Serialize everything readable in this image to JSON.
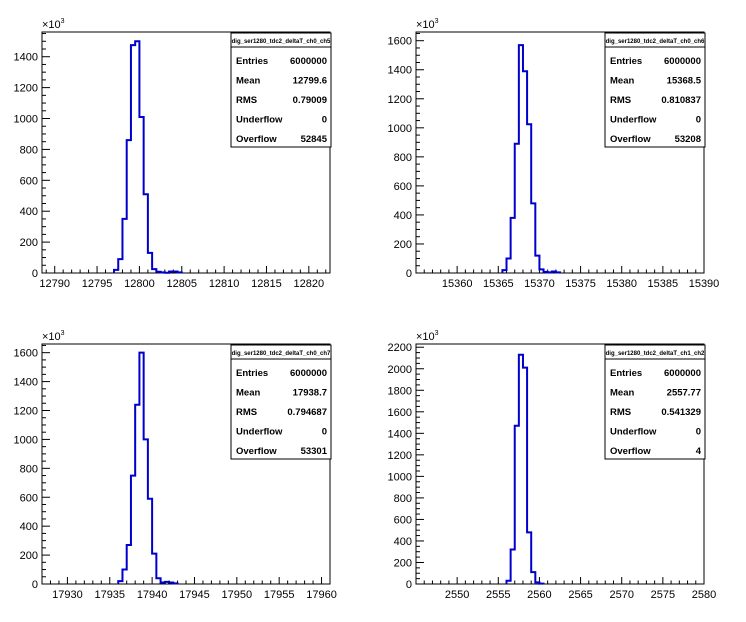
{
  "chart_data": [
    {
      "type": "histogram",
      "title": "",
      "xlabel": "",
      "ylabel": "",
      "y_exponent": "10^3",
      "y_exponent_base": "×10",
      "y_exponent_power": "3",
      "xlim": [
        12788.5,
        12822.5
      ],
      "ylim": [
        0,
        1560
      ],
      "x_ticks": [
        12790,
        12795,
        12800,
        12805,
        12810,
        12815,
        12820
      ],
      "y_ticks": [
        0,
        200,
        400,
        600,
        800,
        1000,
        1200,
        1400
      ],
      "bin_width": 0.5,
      "bins": [
        {
          "x": 12797.0,
          "y": 20
        },
        {
          "x": 12797.5,
          "y": 90
        },
        {
          "x": 12798.0,
          "y": 350
        },
        {
          "x": 12798.5,
          "y": 860
        },
        {
          "x": 12799.0,
          "y": 1475
        },
        {
          "x": 12799.5,
          "y": 1500
        },
        {
          "x": 12800.0,
          "y": 1010
        },
        {
          "x": 12800.5,
          "y": 510
        },
        {
          "x": 12801.0,
          "y": 130
        },
        {
          "x": 12801.5,
          "y": 25
        },
        {
          "x": 12802.0,
          "y": 8
        },
        {
          "x": 12802.5,
          "y": 4
        },
        {
          "x": 12803.0,
          "y": 2
        },
        {
          "x": 12803.5,
          "y": 10
        },
        {
          "x": 12804.0,
          "y": 10
        },
        {
          "x": 12804.5,
          "y": 4
        }
      ],
      "stats": {
        "name": "dig_ser1280_tdc2_deltaT_ch0_ch5",
        "rows": [
          {
            "label": "Entries",
            "value": "6000000"
          },
          {
            "label": "Mean",
            "value": "12799.6"
          },
          {
            "label": "RMS",
            "value": "0.79009"
          },
          {
            "label": "Underflow",
            "value": "0"
          },
          {
            "label": "Overflow",
            "value": "52845"
          }
        ]
      }
    },
    {
      "type": "histogram",
      "title": "",
      "xlabel": "",
      "ylabel": "",
      "y_exponent": "10^3",
      "y_exponent_base": "×10",
      "y_exponent_power": "3",
      "xlim": [
        15355,
        15390
      ],
      "ylim": [
        0,
        1660
      ],
      "x_ticks": [
        15360,
        15365,
        15370,
        15375,
        15380,
        15385,
        15390
      ],
      "y_ticks": [
        0,
        200,
        400,
        600,
        800,
        1000,
        1200,
        1400,
        1600
      ],
      "bin_width": 0.5,
      "bins": [
        {
          "x": 15365.5,
          "y": 20
        },
        {
          "x": 15366.0,
          "y": 100
        },
        {
          "x": 15366.5,
          "y": 380
        },
        {
          "x": 15367.0,
          "y": 890
        },
        {
          "x": 15367.5,
          "y": 1570
        },
        {
          "x": 15368.0,
          "y": 1390
        },
        {
          "x": 15368.5,
          "y": 1025
        },
        {
          "x": 15369.0,
          "y": 480
        },
        {
          "x": 15369.5,
          "y": 120
        },
        {
          "x": 15370.0,
          "y": 25
        },
        {
          "x": 15370.5,
          "y": 8
        },
        {
          "x": 15371.0,
          "y": 4
        },
        {
          "x": 15371.5,
          "y": 10
        },
        {
          "x": 15372.0,
          "y": 4
        }
      ],
      "stats": {
        "name": "dig_ser1280_tdc2_deltaT_ch0_ch6",
        "rows": [
          {
            "label": "Entries",
            "value": "6000000"
          },
          {
            "label": "Mean",
            "value": "15368.5"
          },
          {
            "label": "RMS",
            "value": "0.810837"
          },
          {
            "label": "Underflow",
            "value": "0"
          },
          {
            "label": "Overflow",
            "value": "53208"
          }
        ]
      }
    },
    {
      "type": "histogram",
      "title": "",
      "xlabel": "",
      "ylabel": "",
      "y_exponent": "10^3",
      "y_exponent_base": "×10",
      "y_exponent_power": "3",
      "xlim": [
        17927,
        17961
      ],
      "ylim": [
        0,
        1660
      ],
      "x_ticks": [
        17930,
        17935,
        17940,
        17945,
        17950,
        17955,
        17960
      ],
      "y_ticks": [
        0,
        200,
        400,
        600,
        800,
        1000,
        1200,
        1400,
        1600
      ],
      "bin_width": 0.5,
      "bins": [
        {
          "x": 17936.0,
          "y": 20
        },
        {
          "x": 17936.5,
          "y": 100
        },
        {
          "x": 17937.0,
          "y": 270
        },
        {
          "x": 17937.5,
          "y": 750
        },
        {
          "x": 17938.0,
          "y": 1240
        },
        {
          "x": 17938.5,
          "y": 1600
        },
        {
          "x": 17939.0,
          "y": 1000
        },
        {
          "x": 17939.5,
          "y": 590
        },
        {
          "x": 17940.0,
          "y": 210
        },
        {
          "x": 17940.5,
          "y": 40
        },
        {
          "x": 17941.0,
          "y": 10
        },
        {
          "x": 17941.5,
          "y": 15
        },
        {
          "x": 17942.0,
          "y": 10
        },
        {
          "x": 17942.5,
          "y": 4
        }
      ],
      "stats": {
        "name": "dig_ser1280_tdc2_deltaT_ch0_ch7",
        "rows": [
          {
            "label": "Entries",
            "value": "6000000"
          },
          {
            "label": "Mean",
            "value": "17938.7"
          },
          {
            "label": "RMS",
            "value": "0.794687"
          },
          {
            "label": "Underflow",
            "value": "0"
          },
          {
            "label": "Overflow",
            "value": "53301"
          }
        ]
      }
    },
    {
      "type": "histogram",
      "title": "",
      "xlabel": "",
      "ylabel": "",
      "y_exponent": "10^3",
      "y_exponent_base": "×10",
      "y_exponent_power": "3",
      "xlim": [
        2545,
        2580
      ],
      "ylim": [
        0,
        2230
      ],
      "x_ticks": [
        2550,
        2555,
        2560,
        2565,
        2570,
        2575,
        2580
      ],
      "y_ticks": [
        0,
        200,
        400,
        600,
        800,
        1000,
        1200,
        1400,
        1600,
        1800,
        2000,
        2200
      ],
      "bin_width": 0.5,
      "bins": [
        {
          "x": 2556.0,
          "y": 30
        },
        {
          "x": 2556.5,
          "y": 320
        },
        {
          "x": 2557.0,
          "y": 1470
        },
        {
          "x": 2557.5,
          "y": 2130
        },
        {
          "x": 2558.0,
          "y": 2010
        },
        {
          "x": 2558.5,
          "y": 480
        },
        {
          "x": 2559.0,
          "y": 110
        },
        {
          "x": 2559.5,
          "y": 15
        },
        {
          "x": 2560.0,
          "y": 3
        }
      ],
      "stats": {
        "name": "dig_ser1280_tdc2_deltaT_ch1_ch2",
        "rows": [
          {
            "label": "Entries",
            "value": "6000000"
          },
          {
            "label": "Mean",
            "value": "2557.77"
          },
          {
            "label": "RMS",
            "value": "0.541329"
          },
          {
            "label": "Underflow",
            "value": "0"
          },
          {
            "label": "Overflow",
            "value": "4"
          }
        ]
      }
    }
  ]
}
